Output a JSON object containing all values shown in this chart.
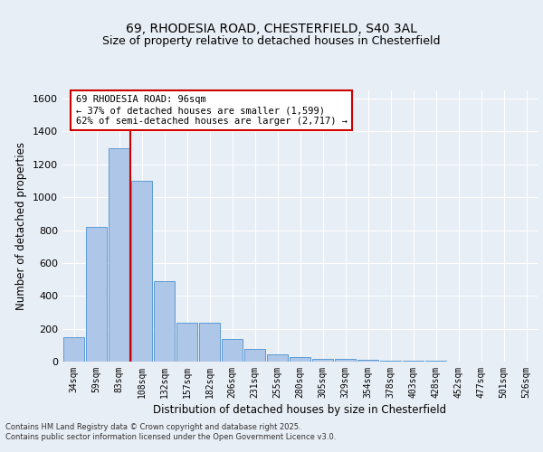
{
  "title_line1": "69, RHODESIA ROAD, CHESTERFIELD, S40 3AL",
  "title_line2": "Size of property relative to detached houses in Chesterfield",
  "xlabel": "Distribution of detached houses by size in Chesterfield",
  "ylabel": "Number of detached properties",
  "categories": [
    "34sqm",
    "59sqm",
    "83sqm",
    "108sqm",
    "132sqm",
    "157sqm",
    "182sqm",
    "206sqm",
    "231sqm",
    "255sqm",
    "280sqm",
    "305sqm",
    "329sqm",
    "354sqm",
    "378sqm",
    "403sqm",
    "428sqm",
    "452sqm",
    "477sqm",
    "501sqm",
    "526sqm"
  ],
  "values": [
    148,
    820,
    1300,
    1100,
    490,
    235,
    235,
    138,
    75,
    45,
    28,
    18,
    15,
    10,
    8,
    5,
    3,
    2,
    1,
    1,
    0
  ],
  "bar_color": "#aec6e8",
  "bar_edge_color": "#5b9bd5",
  "vline_x": 2.5,
  "vline_color": "#cc0000",
  "annotation_text": "69 RHODESIA ROAD: 96sqm\n← 37% of detached houses are smaller (1,599)\n62% of semi-detached houses are larger (2,717) →",
  "annotation_box_color": "#cc0000",
  "ylim": [
    0,
    1650
  ],
  "yticks": [
    0,
    200,
    400,
    600,
    800,
    1000,
    1200,
    1400,
    1600
  ],
  "background_color": "#e8eef5",
  "grid_color": "#ffffff",
  "title_fontsize": 10,
  "subtitle_fontsize": 9,
  "xlabel_fontsize": 8.5,
  "ylabel_fontsize": 8.5,
  "footer_text": "Contains HM Land Registry data © Crown copyright and database right 2025.\nContains public sector information licensed under the Open Government Licence v3.0."
}
